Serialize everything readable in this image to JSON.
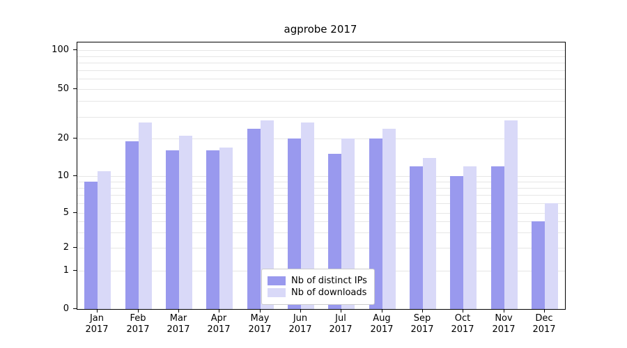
{
  "figure": {
    "title": "agprobe 2017"
  },
  "chart_data": {
    "type": "bar",
    "title": "agprobe 2017",
    "categories": [
      "Jan",
      "Feb",
      "Mar",
      "Apr",
      "May",
      "Jun",
      "Jul",
      "Aug",
      "Sep",
      "Oct",
      "Nov",
      "Dec"
    ],
    "year_label": "2017",
    "series": [
      {
        "name": "Nb of distinct IPs",
        "color": "#9999ee",
        "values": [
          9,
          19,
          16,
          16,
          24,
          20,
          15,
          20,
          12,
          10,
          12,
          4
        ]
      },
      {
        "name": "Nb of downloads",
        "color": "#d9d9f8",
        "values": [
          11,
          27,
          21,
          17,
          28,
          27,
          20,
          24,
          14,
          12,
          28,
          6
        ]
      }
    ],
    "yticks": [
      0,
      1,
      2,
      5,
      10,
      20,
      50,
      100
    ],
    "yscale": "symlog",
    "ylim": [
      0,
      100
    ],
    "grid": true,
    "legend_position": "bottom-center"
  }
}
